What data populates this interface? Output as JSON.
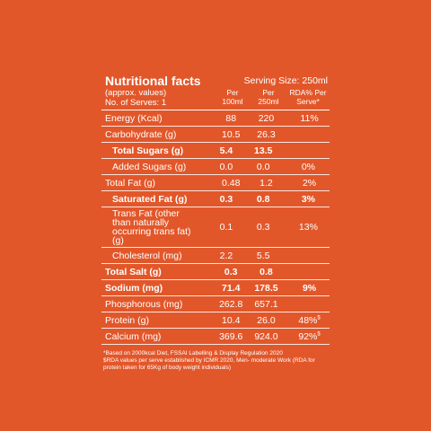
{
  "header": {
    "title": "Nutritional facts",
    "serving_size": "Serving Size: 250ml",
    "subtitle": "(approx. values)",
    "serves": "No. of Serves: 1",
    "columns": [
      "Per 100ml",
      "Per 250ml",
      "RDA% Per Serve*"
    ]
  },
  "table": {
    "rows": [
      {
        "label": "Energy (Kcal)",
        "per100": "88",
        "per250": "220",
        "rda": "11%",
        "bold": false,
        "indent": false
      },
      {
        "label": "Carbohydrate (g)",
        "per100": "10.5",
        "per250": "26.3",
        "rda": "",
        "bold": false,
        "indent": false
      },
      {
        "label": "Total Sugars (g)",
        "per100": "5.4",
        "per250": "13.5",
        "rda": "",
        "bold": true,
        "indent": true
      },
      {
        "label": "Added Sugars (g)",
        "per100": "0.0",
        "per250": "0.0",
        "rda": "0%",
        "bold": false,
        "indent": true
      },
      {
        "label": "Total Fat (g)",
        "per100": "0.48",
        "per250": "1.2",
        "rda": "2%",
        "bold": false,
        "indent": false
      },
      {
        "label": "Saturated Fat (g)",
        "per100": "0.3",
        "per250": "0.8",
        "rda": "3%",
        "bold": true,
        "indent": true
      },
      {
        "label": "Trans Fat (other than naturally occurring trans fat) (g)",
        "per100": "0.1",
        "per250": "0.3",
        "rda": "13%",
        "bold": false,
        "indent": true
      },
      {
        "label": "Cholesterol (mg)",
        "per100": "2.2",
        "per250": "5.5",
        "rda": "",
        "bold": false,
        "indent": true
      },
      {
        "label": "Total Salt (g)",
        "per100": "0.3",
        "per250": "0.8",
        "rda": "",
        "bold": true,
        "indent": false
      },
      {
        "label": "Sodium (mg)",
        "per100": "71.4",
        "per250": "178.5",
        "rda": "9%",
        "bold": true,
        "indent": false
      },
      {
        "label": "Phosphorous (mg)",
        "per100": "262.8",
        "per250": "657.1",
        "rda": "",
        "bold": false,
        "indent": false
      },
      {
        "label": "Protein (g)",
        "per100": "10.4",
        "per250": "26.0",
        "rda": "48%",
        "note": "$",
        "bold": false,
        "indent": false
      },
      {
        "label": "Calcium (mg)",
        "per100": "369.6",
        "per250": "924.0",
        "rda": "92%",
        "note": "$",
        "bold": false,
        "indent": false
      }
    ]
  },
  "footnotes": [
    "*Based on 2000kcal Diet, FSSAI Labelling & Display Regulation 2020",
    "$RDA values per serve established by ICMR 2020, Men- moderate Work (RDA for protein taken for 65Kg of body weight individuals)"
  ]
}
